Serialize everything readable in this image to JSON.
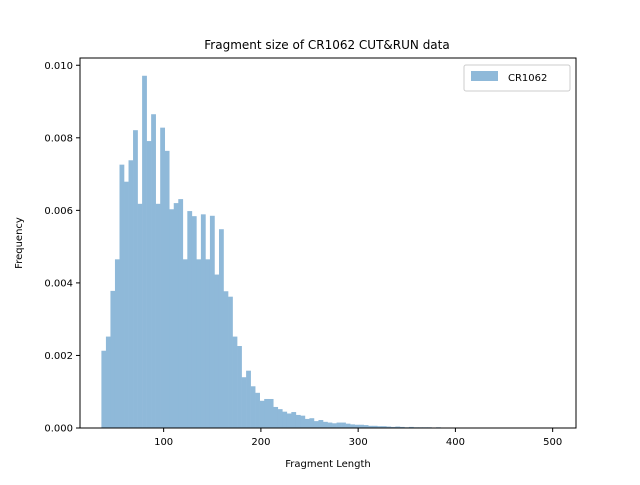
{
  "chart_data": {
    "type": "bar",
    "title": "Fragment size of CR1062 CUT&RUN data",
    "xlabel": "Fragment Length",
    "ylabel": "Frequency",
    "xlim": [
      14,
      524
    ],
    "ylim": [
      0,
      0.0102
    ],
    "x_ticks": [
      100,
      200,
      300,
      400,
      500
    ],
    "x_tick_labels": [
      "100",
      "200",
      "300",
      "400",
      "500"
    ],
    "y_ticks": [
      0,
      0.002,
      0.004,
      0.006,
      0.008,
      0.01
    ],
    "y_tick_labels": [
      "0.000",
      "0.002",
      "0.004",
      "0.006",
      "0.008",
      "0.010"
    ],
    "legend_position": "upper right",
    "bar_color": "#8fb9d9",
    "series": [
      {
        "name": "CR1062",
        "bin_start": 36,
        "bin_width": 4.65,
        "values": [
          0.00213,
          0.00252,
          0.00378,
          0.00465,
          0.00726,
          0.00679,
          0.00738,
          0.00821,
          0.00618,
          0.00971,
          0.00791,
          0.00865,
          0.00618,
          0.00828,
          0.00764,
          0.00603,
          0.0062,
          0.00631,
          0.00465,
          0.00598,
          0.00584,
          0.00465,
          0.00589,
          0.00465,
          0.00585,
          0.00423,
          0.00548,
          0.00377,
          0.00362,
          0.00252,
          0.00226,
          0.0014,
          0.00158,
          0.00115,
          0.00097,
          0.00075,
          0.0008,
          0.0008,
          0.00058,
          0.00052,
          0.00045,
          0.0004,
          0.00044,
          0.00036,
          0.00034,
          0.00025,
          0.00027,
          0.00019,
          0.00022,
          0.00017,
          0.00015,
          0.00013,
          0.00015,
          0.00015,
          0.00012,
          0.0001,
          9e-05,
          9e-05,
          8e-05,
          6e-05,
          6e-05,
          5e-05,
          5e-05,
          4e-05,
          3e-05,
          4e-05,
          3e-05,
          2e-05,
          3e-05,
          2e-05,
          2e-05,
          2e-05,
          2e-05,
          1e-05,
          2e-05,
          1e-05,
          1e-05,
          1e-05,
          1e-05,
          1e-05,
          1e-05,
          1e-05,
          1e-05,
          1e-05,
          1e-05,
          1e-05,
          1e-05,
          1e-05,
          1e-05,
          1e-05,
          1e-05,
          1e-05,
          1e-05,
          1e-05,
          1e-05,
          1e-05,
          1e-05,
          1e-05,
          1e-05,
          1e-05,
          1e-05
        ]
      }
    ]
  }
}
